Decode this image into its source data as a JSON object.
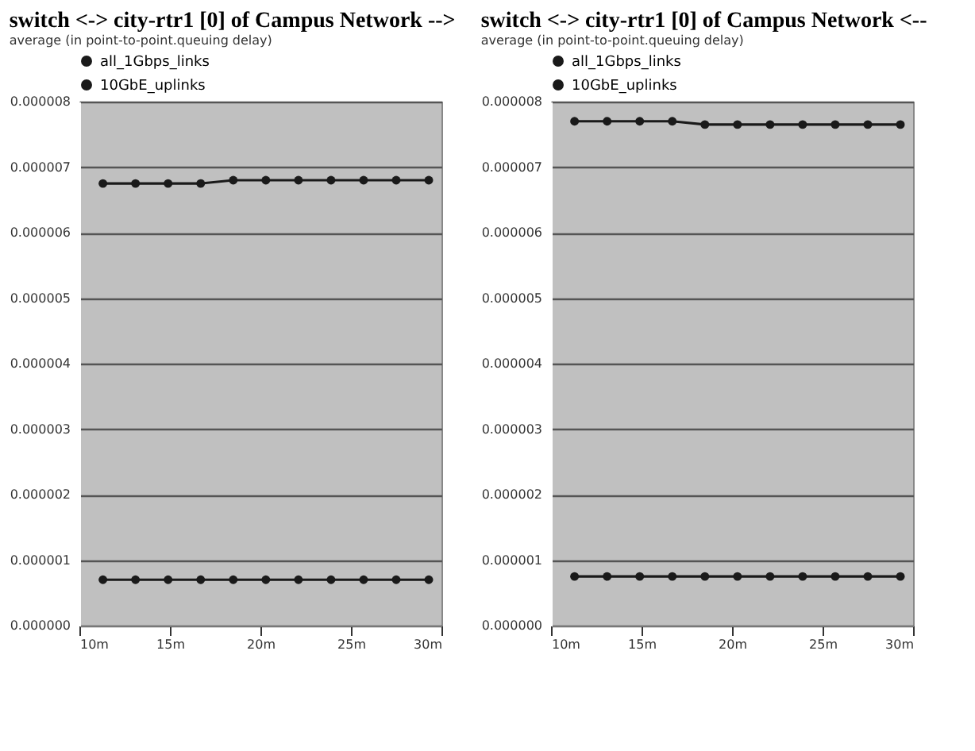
{
  "chart_data": [
    {
      "type": "line",
      "title": "switch <-> city-rtr1 [0] of Campus Network -->",
      "subtitle": "average (in point-to-point.queuing delay)",
      "x": [
        11.3,
        13.1,
        14.9,
        16.7,
        18.5,
        20.3,
        22.1,
        23.9,
        25.7,
        27.5,
        29.3
      ],
      "series": [
        {
          "name": "all_1Gbps_links",
          "color": "#1a1a1a",
          "values": [
            6.75e-06,
            6.75e-06,
            6.75e-06,
            6.75e-06,
            6.8e-06,
            6.8e-06,
            6.8e-06,
            6.8e-06,
            6.8e-06,
            6.8e-06,
            6.8e-06
          ]
        },
        {
          "name": "10GbE_uplinks",
          "color": "#1a1a1a",
          "values": [
            7e-07,
            7e-07,
            7e-07,
            7e-07,
            7e-07,
            7e-07,
            7e-07,
            7e-07,
            7e-07,
            7e-07,
            7e-07
          ]
        }
      ],
      "xlim": [
        10,
        30
      ],
      "xticks": [
        {
          "value": 10,
          "label": "10m"
        },
        {
          "value": 15,
          "label": "15m"
        },
        {
          "value": 20,
          "label": "20m"
        },
        {
          "value": 25,
          "label": "25m"
        },
        {
          "value": 30,
          "label": "30m"
        }
      ],
      "ylim": [
        0,
        8e-06
      ],
      "yticks": [
        {
          "value": 0,
          "label": "0.000000"
        },
        {
          "value": 1e-06,
          "label": "0.000001"
        },
        {
          "value": 2e-06,
          "label": "0.000002"
        },
        {
          "value": 3e-06,
          "label": "0.000003"
        },
        {
          "value": 4e-06,
          "label": "0.000004"
        },
        {
          "value": 5e-06,
          "label": "0.000005"
        },
        {
          "value": 6e-06,
          "label": "0.000006"
        },
        {
          "value": 7e-06,
          "label": "0.000007"
        },
        {
          "value": 8e-06,
          "label": "0.000008"
        }
      ],
      "grid": "y",
      "legend": "top left",
      "marker": "circle",
      "line_style": "solid"
    },
    {
      "type": "line",
      "title": "switch <-> city-rtr1 [0] of Campus Network <--",
      "subtitle": "average (in point-to-point.queuing delay)",
      "x": [
        11.3,
        13.1,
        14.9,
        16.7,
        18.5,
        20.3,
        22.1,
        23.9,
        25.7,
        27.5,
        29.3
      ],
      "series": [
        {
          "name": "all_1Gbps_links",
          "color": "#1a1a1a",
          "values": [
            7.7e-06,
            7.7e-06,
            7.7e-06,
            7.7e-06,
            7.65e-06,
            7.65e-06,
            7.65e-06,
            7.65e-06,
            7.65e-06,
            7.65e-06,
            7.65e-06
          ]
        },
        {
          "name": "10GbE_uplinks",
          "color": "#1a1a1a",
          "values": [
            7.5e-07,
            7.5e-07,
            7.5e-07,
            7.5e-07,
            7.5e-07,
            7.5e-07,
            7.5e-07,
            7.5e-07,
            7.5e-07,
            7.5e-07,
            7.5e-07
          ]
        }
      ],
      "xlim": [
        10,
        30
      ],
      "xticks": [
        {
          "value": 10,
          "label": "10m"
        },
        {
          "value": 15,
          "label": "15m"
        },
        {
          "value": 20,
          "label": "20m"
        },
        {
          "value": 25,
          "label": "25m"
        },
        {
          "value": 30,
          "label": "30m"
        }
      ],
      "ylim": [
        0,
        8e-06
      ],
      "yticks": [
        {
          "value": 0,
          "label": "0.000000"
        },
        {
          "value": 1e-06,
          "label": "0.000001"
        },
        {
          "value": 2e-06,
          "label": "0.000002"
        },
        {
          "value": 3e-06,
          "label": "0.000003"
        },
        {
          "value": 4e-06,
          "label": "0.000004"
        },
        {
          "value": 5e-06,
          "label": "0.000005"
        },
        {
          "value": 6e-06,
          "label": "0.000006"
        },
        {
          "value": 7e-06,
          "label": "0.000007"
        },
        {
          "value": 8e-06,
          "label": "0.000008"
        }
      ],
      "grid": "y",
      "legend": "top left",
      "marker": "circle",
      "line_style": "solid"
    }
  ]
}
